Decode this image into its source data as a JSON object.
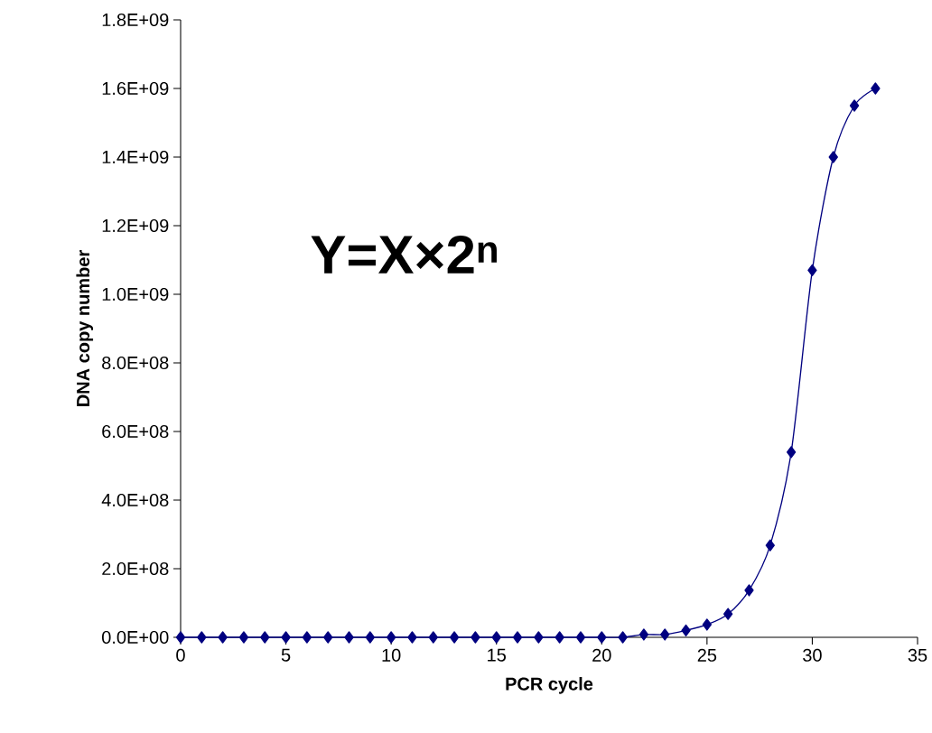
{
  "chart_data": {
    "type": "line",
    "xlabel": "PCR cycle",
    "ylabel": "DNA copy number",
    "annotations": [
      "**Y=X×2$^{n}$**"
    ],
    "x": [
      0,
      1,
      2,
      3,
      4,
      5,
      6,
      7,
      8,
      9,
      10,
      11,
      12,
      13,
      14,
      15,
      16,
      17,
      18,
      19,
      20,
      21,
      22,
      23,
      24,
      25,
      26,
      27,
      28,
      29,
      30,
      31,
      32,
      33
    ],
    "series": [
      {
        "color": "#000080",
        "values": [
          0,
          0,
          0,
          0,
          0,
          0,
          0,
          0,
          0,
          0,
          0,
          0,
          0,
          0,
          0,
          0,
          0,
          0,
          0,
          0,
          0,
          0,
          8000000,
          8000000,
          20000000,
          37000000,
          68000000,
          137000000,
          268000000,
          540000000,
          1070000000,
          1400000000,
          1550000000,
          1600000000
        ]
      }
    ],
    "xlim": [
      0,
      35
    ],
    "xticks": [
      0,
      5,
      10,
      15,
      20,
      25,
      30,
      35
    ],
    "ylim": [
      0,
      1800000000
    ],
    "yticks": [
      {
        "value": 0,
        "label": "0.0E+00"
      },
      {
        "value": 200000000,
        "label": "2.0E+08"
      },
      {
        "value": 400000000,
        "label": "4.0E+08"
      },
      {
        "value": 600000000,
        "label": "6.0E+08"
      },
      {
        "value": 800000000,
        "label": "8.0E+08"
      },
      {
        "value": 1000000000,
        "label": "1.0E+09"
      },
      {
        "value": 1200000000,
        "label": "1.2E+09"
      },
      {
        "value": 1400000000,
        "label": "1.4E+09"
      },
      {
        "value": 1600000000,
        "label": "1.6E+09"
      },
      {
        "value": 1800000000,
        "label": "1.8E+09"
      }
    ],
    "grid": false,
    "legend": false,
    "marker": "diamond",
    "line_style": "solid"
  }
}
